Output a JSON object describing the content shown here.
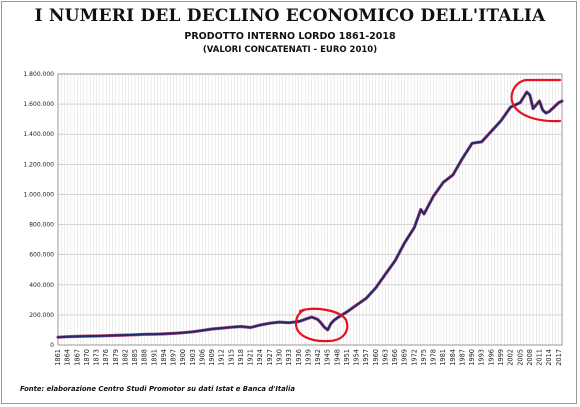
{
  "chart_data": {
    "type": "line",
    "title": "I NUMERI DEL DECLINO ECONOMICO DELL'ITALIA",
    "subtitle": "PRODOTTO INTERNO LORDO 1861-2018",
    "subtitle2": "(VALORI CONCATENATI - EURO 2010)",
    "footer": "Fonte: elaborazione Centro Studi Promotor su dati Istat e Banca d'Italia",
    "xlabel": "",
    "ylabel": "",
    "ylim": [
      0,
      1800000
    ],
    "xlim": [
      1861,
      2018
    ],
    "grid": true,
    "y_ticks": [
      "0",
      "200.000",
      "400.000",
      "600.000",
      "800.000",
      "1.000.000",
      "1.200.000",
      "1.400.000",
      "1.600.000",
      "1.800.000"
    ],
    "x_ticks": [
      "1861",
      "1864",
      "1867",
      "1870",
      "1873",
      "1876",
      "1879",
      "1882",
      "1885",
      "1888",
      "1891",
      "1894",
      "1897",
      "1900",
      "1903",
      "1906",
      "1909",
      "1912",
      "1915",
      "1918",
      "1921",
      "1924",
      "1927",
      "1930",
      "1933",
      "1936",
      "1939",
      "1942",
      "1945",
      "1948",
      "1951",
      "1954",
      "1957",
      "1960",
      "1963",
      "1966",
      "1969",
      "1972",
      "1975",
      "1978",
      "1981",
      "1984",
      "1987",
      "1990",
      "1993",
      "1996",
      "1999",
      "2002",
      "2005",
      "2008",
      "2011",
      "2014",
      "2017"
    ],
    "series": [
      {
        "color": "#1f2a6b",
        "x": [
          1861,
          1864,
          1867,
          1870,
          1873,
          1876,
          1879,
          1882,
          1885,
          1888,
          1891,
          1894,
          1897,
          1900,
          1903,
          1906,
          1909,
          1912,
          1915,
          1918,
          1921,
          1924,
          1927,
          1930,
          1933,
          1936,
          1939,
          1940,
          1941,
          1942,
          1943,
          1944,
          1945,
          1946,
          1947,
          1948,
          1951,
          1954,
          1957,
          1960,
          1963,
          1966,
          1969,
          1972,
          1974,
          1975,
          1978,
          1981,
          1984,
          1987,
          1990,
          1993,
          1996,
          1999,
          2002,
          2005,
          2007,
          2008,
          2009,
          2011,
          2012,
          2013,
          2014,
          2015,
          2016,
          2017,
          2018
        ],
        "values": [
          52000,
          55000,
          57000,
          59000,
          60000,
          62000,
          64000,
          66000,
          68000,
          71000,
          72000,
          74000,
          77000,
          82000,
          88000,
          97000,
          106000,
          112000,
          118000,
          123000,
          116000,
          133000,
          145000,
          152000,
          148000,
          156000,
          178000,
          185000,
          178000,
          168000,
          145000,
          118000,
          100000,
          142000,
          165000,
          180000,
          220000,
          265000,
          310000,
          380000,
          470000,
          560000,
          680000,
          780000,
          900000,
          870000,
          990000,
          1080000,
          1130000,
          1240000,
          1340000,
          1350000,
          1420000,
          1490000,
          1580000,
          1610000,
          1680000,
          1660000,
          1570000,
          1620000,
          1560000,
          1540000,
          1550000,
          1570000,
          1590000,
          1610000,
          1620000
        ]
      }
    ],
    "annotations": [
      {
        "shape": "ellipse",
        "color": "#e8121f",
        "label": "circled-period-1940s"
      },
      {
        "shape": "ellipse",
        "color": "#e8121f",
        "label": "circled-period-2008-2018"
      }
    ]
  }
}
